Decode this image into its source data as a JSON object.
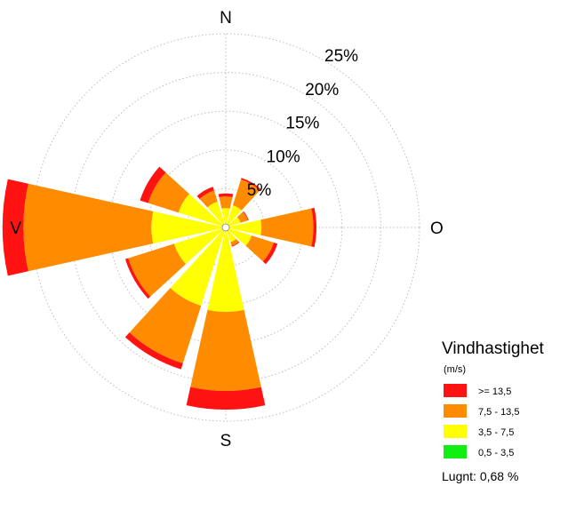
{
  "chart_data": {
    "type": "windrose",
    "unit": "%",
    "direction_labels": {
      "north": "N",
      "east": "O",
      "south": "S",
      "west": "V"
    },
    "ring_values": [
      5,
      10,
      15,
      20,
      25
    ],
    "ring_labels": [
      "5%",
      "10%",
      "15%",
      "20%",
      "25%"
    ],
    "sectors": [
      {
        "direction_deg": 0,
        "cumulative": [
          0.5,
          2.5,
          4.0,
          4.4
        ]
      },
      {
        "direction_deg": 30,
        "cumulative": [
          0.5,
          3.0,
          6.5,
          6.7
        ]
      },
      {
        "direction_deg": 60,
        "cumulative": [
          0.5,
          2.0,
          3.0,
          3.1
        ]
      },
      {
        "direction_deg": 90,
        "cumulative": [
          0.5,
          4.6,
          11.3,
          11.7
        ]
      },
      {
        "direction_deg": 120,
        "cumulative": [
          0.5,
          3.5,
          6.5,
          7.0
        ]
      },
      {
        "direction_deg": 150,
        "cumulative": [
          0.5,
          2.0,
          2.5,
          2.6
        ]
      },
      {
        "direction_deg": 180,
        "cumulative": [
          0.5,
          10.9,
          21.1,
          23.5
        ]
      },
      {
        "direction_deg": 210,
        "cumulative": [
          0.5,
          10.6,
          18.4,
          19.2
        ]
      },
      {
        "direction_deg": 240,
        "cumulative": [
          0.5,
          7.0,
          13.2,
          13.6
        ]
      },
      {
        "direction_deg": 270,
        "cumulative": [
          0.5,
          9.6,
          26.1,
          28.8
        ]
      },
      {
        "direction_deg": 300,
        "cumulative": [
          0.5,
          6.4,
          10.5,
          11.6
        ]
      },
      {
        "direction_deg": 330,
        "cumulative": [
          0.5,
          3.5,
          5.0,
          5.5
        ]
      }
    ],
    "legend": {
      "title": "Vindhastighet",
      "unit": "(m/s)",
      "placement": "bottom-right",
      "entries": [
        {
          "label": ">= 13,5",
          "color": "#ff1212"
        },
        {
          "label": "7,5 - 13,5",
          "color": "#ff8c00"
        },
        {
          "label": "3,5 -  7,5",
          "color": "#ffff00"
        },
        {
          "label": "0,5 -  3,5",
          "color": "#11ee11"
        }
      ]
    },
    "calm_text": "Lugnt: 0,68 %"
  }
}
